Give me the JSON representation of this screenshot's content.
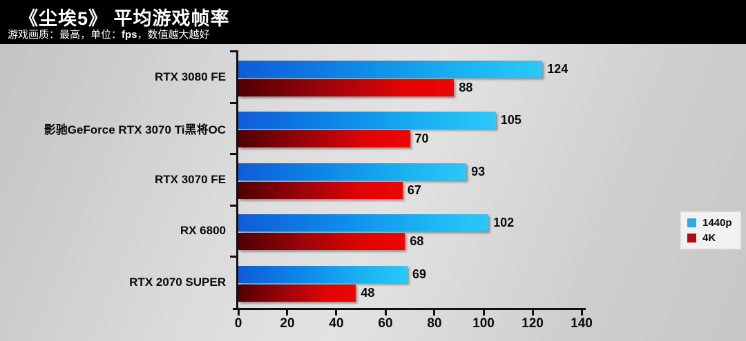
{
  "header": {
    "title": "《尘埃5》 平均游戏帧率",
    "subtitle_prefix": "游戏画质：最高，单位：",
    "subtitle_unit": "fps",
    "subtitle_suffix": "，数值越大越好"
  },
  "chart_data": {
    "type": "bar",
    "orientation": "horizontal",
    "title": "《尘埃5》 平均游戏帧率",
    "subtitle": "游戏画质：最高，单位：fps，数值越大越好",
    "unit": "fps",
    "categories": [
      "RTX 3080 FE",
      "影驰GeForce RTX 3070 Ti黑将OC",
      "RTX 3070 FE",
      "RX 6800",
      "RTX 2070 SUPER"
    ],
    "series": [
      {
        "name": "1440p",
        "values": [
          124,
          105,
          93,
          102,
          69
        ],
        "gradient": [
          "#0f5cd8",
          "#0e8ae8",
          "#1ab4f2",
          "#2cc8f8"
        ]
      },
      {
        "name": "4K",
        "values": [
          88,
          70,
          67,
          68,
          48
        ],
        "gradient": [
          "#4f0003",
          "#9c040a",
          "#e00404",
          "#ef0505"
        ]
      }
    ],
    "xlim": [
      0,
      140
    ],
    "x_ticks": [
      0,
      20,
      40,
      60,
      80,
      100,
      120,
      140
    ],
    "value_labels": true,
    "grid": false,
    "legend_position": "middle-right",
    "higher_is_better": true
  },
  "legend": {
    "items": [
      {
        "label": "1440p",
        "color": "#2fa7e8"
      },
      {
        "label": "4K",
        "color": "#b00b10"
      }
    ]
  },
  "colors": {
    "header_bg": "#000000",
    "header_text": "#ffffff",
    "axis": "#111111",
    "plot_bg": "#d8d8d8"
  }
}
